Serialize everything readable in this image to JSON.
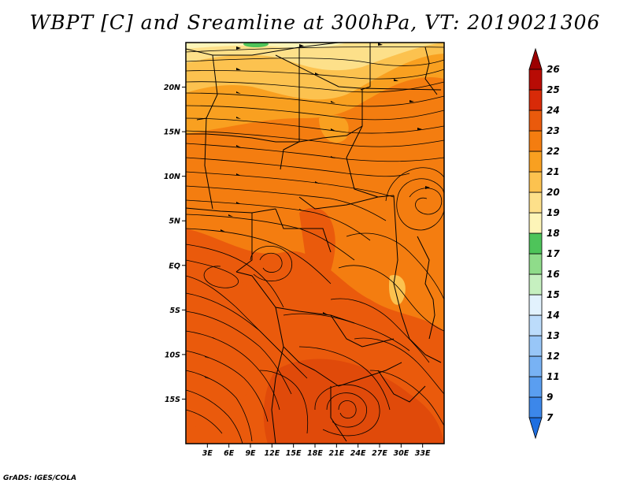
{
  "title": "WBPT [C] and Sreamline at 300hPa, VT: 2019021306",
  "credit": "GrADS: IGES/COLA",
  "map": {
    "lon_range": [
      0,
      36
    ],
    "lat_range": [
      -20,
      25
    ],
    "lat_labels": [
      {
        "text": "20N",
        "lat": 20
      },
      {
        "text": "15N",
        "lat": 15
      },
      {
        "text": "10N",
        "lat": 10
      },
      {
        "text": "5N",
        "lat": 5
      },
      {
        "text": "EQ",
        "lat": 0
      },
      {
        "text": "5S",
        "lat": -5
      },
      {
        "text": "10S",
        "lat": -10
      },
      {
        "text": "15S",
        "lat": -15
      }
    ],
    "lon_labels": [
      {
        "text": "3E",
        "lon": 3
      },
      {
        "text": "6E",
        "lon": 6
      },
      {
        "text": "9E",
        "lon": 9
      },
      {
        "text": "12E",
        "lon": 12
      },
      {
        "text": "15E",
        "lon": 15
      },
      {
        "text": "18E",
        "lon": 18
      },
      {
        "text": "21E",
        "lon": 21
      },
      {
        "text": "24E",
        "lon": 24
      },
      {
        "text": "27E",
        "lon": 27
      },
      {
        "text": "30E",
        "lon": 30
      },
      {
        "text": "33E",
        "lon": 33
      }
    ]
  },
  "colorbar": {
    "levels": [
      "7",
      "9",
      "11",
      "12",
      "13",
      "14",
      "15",
      "16",
      "17",
      "18",
      "19",
      "20",
      "21",
      "22",
      "23",
      "24",
      "25",
      "26"
    ],
    "colors": [
      "#1e6fe0",
      "#3c87ea",
      "#5a9ef0",
      "#78b2f4",
      "#98c6f7",
      "#bcdcfb",
      "#e2f2fd",
      "#c6f0c0",
      "#8fdc8a",
      "#4ec45a",
      "#fdf5b8",
      "#fde08a",
      "#fcc24f",
      "#f9a020",
      "#f47d10",
      "#ea5a0c",
      "#d82a08",
      "#b80b05",
      "#9c0000"
    ]
  }
}
